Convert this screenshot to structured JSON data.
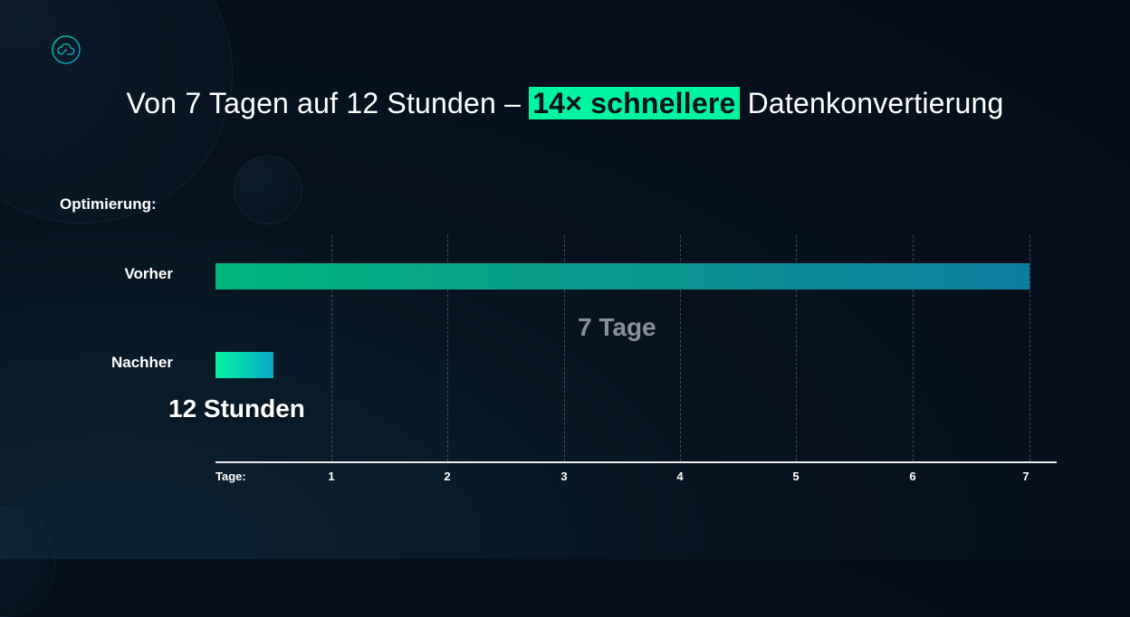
{
  "header": {
    "logo_icon": "cloud-circle-icon",
    "title_prefix": "Von 7 Tagen auf 12 Stunden –",
    "title_highlight": "14× schnellere",
    "title_suffix": "Datenkonvertierung"
  },
  "colors": {
    "background": "#06111d",
    "highlight": "#00f5a0",
    "bar_vorher_start": "#00b67e",
    "bar_vorher_end": "#0c7ea0",
    "bar_nachher_start": "#00f5a0",
    "bar_nachher_end": "#0aa9c8",
    "muted_label": "#8a9099"
  },
  "chart_data": {
    "type": "bar",
    "orientation": "horizontal",
    "title": "Von 7 Tagen auf 12 Stunden – 14× schnellere Datenkonvertierung",
    "group_label": "Optimierung:",
    "categories": [
      "Vorher",
      "Nachher"
    ],
    "values": [
      7,
      0.5
    ],
    "value_labels": [
      "7 Tage",
      "12 Stunden"
    ],
    "xlabel": "Tage:",
    "xticks": [
      "1",
      "2",
      "3",
      "4",
      "5",
      "6",
      "7"
    ],
    "xlim": [
      0,
      7.2
    ],
    "grid": true,
    "grid_style": "dashed vertical"
  },
  "chart": {
    "group_label": "Optimierung:",
    "rows": [
      {
        "label": "Vorher",
        "value_label": "7 Tage"
      },
      {
        "label": "Nachher",
        "value_label": "12 Stunden"
      }
    ],
    "axis_label": "Tage:",
    "ticks": [
      "1",
      "2",
      "3",
      "4",
      "5",
      "6",
      "7"
    ]
  }
}
